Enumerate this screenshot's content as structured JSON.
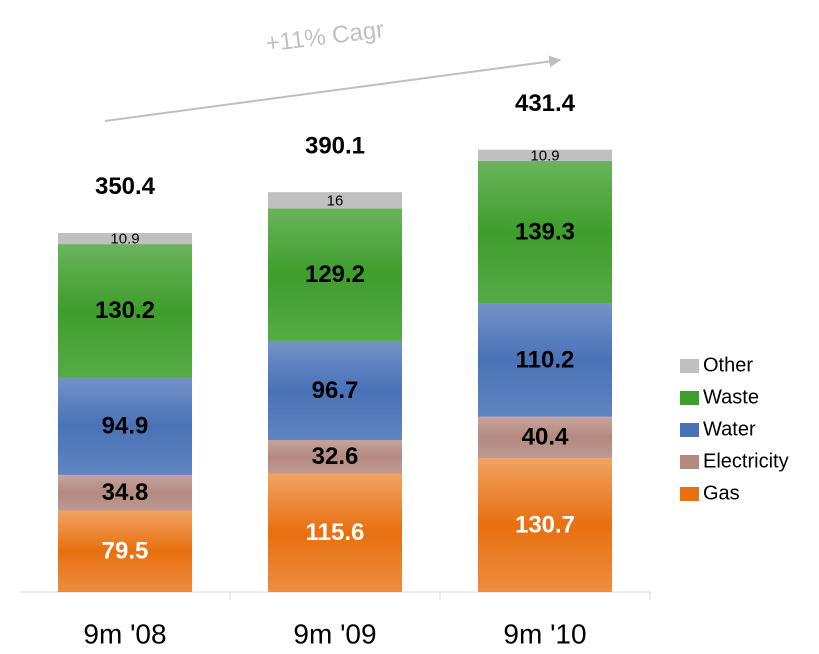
{
  "chart_data": {
    "type": "stacked-bar",
    "annotation": "+11% Cagr",
    "categories": [
      "9m '08",
      "9m '09",
      "9m '10"
    ],
    "totals": [
      350.4,
      390.1,
      431.4
    ],
    "series": [
      {
        "name": "Gas",
        "color": "#e8700f",
        "values": [
          79.5,
          115.6,
          130.7
        ]
      },
      {
        "name": "Electricity",
        "color": "#b48a80",
        "values": [
          34.8,
          32.6,
          40.4
        ]
      },
      {
        "name": "Water",
        "color": "#4a72b8",
        "values": [
          94.9,
          96.7,
          110.2
        ]
      },
      {
        "name": "Waste",
        "color": "#3e9e2c",
        "values": [
          130.2,
          129.2,
          139.3
        ]
      },
      {
        "name": "Other",
        "color": "#c0c0c0",
        "values": [
          10.9,
          16,
          10.9
        ]
      }
    ]
  }
}
